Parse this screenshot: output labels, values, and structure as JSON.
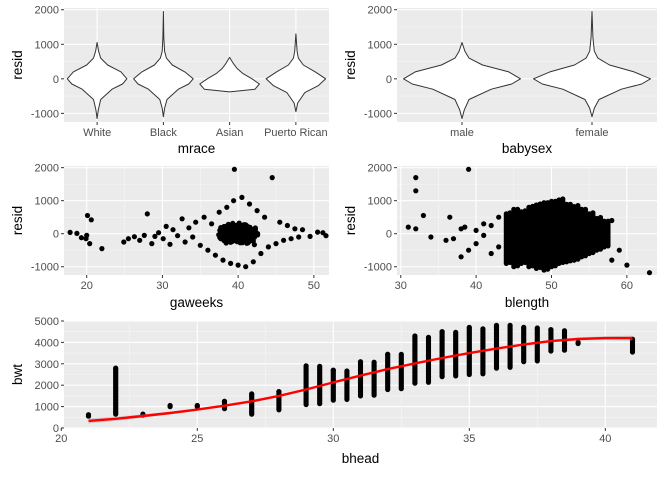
{
  "chart_data": [
    {
      "id": "mrace",
      "type": "violin",
      "xlabel": "mrace",
      "ylabel": "resid",
      "categories": [
        "White",
        "Black",
        "Asian",
        "Puerto Rican"
      ],
      "ylim": [
        -1250,
        2050
      ],
      "yticks": [
        -1000,
        0,
        1000,
        2000
      ],
      "yticklabels": [
        "-1000",
        "0",
        "1000",
        "2000"
      ],
      "grid": true,
      "violins": [
        {
          "min": -1150,
          "max": 1050,
          "profile": [
            [
              -1150,
              0.0
            ],
            [
              -900,
              0.04
            ],
            [
              -600,
              0.12
            ],
            [
              -300,
              0.5
            ],
            [
              -150,
              0.85
            ],
            [
              0,
              1.0
            ],
            [
              200,
              0.8
            ],
            [
              400,
              0.35
            ],
            [
              600,
              0.12
            ],
            [
              800,
              0.05
            ],
            [
              1050,
              0.0
            ]
          ]
        },
        {
          "min": -1100,
          "max": 1950,
          "profile": [
            [
              -1100,
              0.0
            ],
            [
              -850,
              0.04
            ],
            [
              -600,
              0.12
            ],
            [
              -300,
              0.5
            ],
            [
              -150,
              0.85
            ],
            [
              0,
              1.0
            ],
            [
              200,
              0.72
            ],
            [
              400,
              0.3
            ],
            [
              600,
              0.1
            ],
            [
              800,
              0.04
            ],
            [
              1200,
              0.015
            ],
            [
              1950,
              0.0
            ]
          ]
        },
        {
          "min": -380,
          "max": 620,
          "profile": [
            [
              -380,
              0.0
            ],
            [
              -300,
              0.85
            ],
            [
              -150,
              1.0
            ],
            [
              0,
              0.75
            ],
            [
              150,
              0.45
            ],
            [
              300,
              0.25
            ],
            [
              450,
              0.12
            ],
            [
              620,
              0.0
            ]
          ]
        },
        {
          "min": -950,
          "max": 1300,
          "profile": [
            [
              -950,
              0.0
            ],
            [
              -700,
              0.06
            ],
            [
              -400,
              0.3
            ],
            [
              -200,
              0.75
            ],
            [
              0,
              1.0
            ],
            [
              200,
              0.65
            ],
            [
              400,
              0.25
            ],
            [
              600,
              0.08
            ],
            [
              800,
              0.04
            ],
            [
              1300,
              0.0
            ]
          ]
        }
      ]
    },
    {
      "id": "babysex",
      "type": "violin",
      "xlabel": "babysex",
      "ylabel": "resid",
      "categories": [
        "male",
        "female"
      ],
      "ylim": [
        -1250,
        2050
      ],
      "yticks": [
        -1000,
        0,
        1000,
        2000
      ],
      "yticklabels": [
        "-1000",
        "0",
        "1000",
        "2000"
      ],
      "grid": true,
      "violins": [
        {
          "min": -1150,
          "max": 1050,
          "profile": [
            [
              -1150,
              0.0
            ],
            [
              -900,
              0.04
            ],
            [
              -600,
              0.12
            ],
            [
              -300,
              0.5
            ],
            [
              -150,
              0.85
            ],
            [
              0,
              1.0
            ],
            [
              200,
              0.8
            ],
            [
              400,
              0.35
            ],
            [
              600,
              0.12
            ],
            [
              800,
              0.05
            ],
            [
              1050,
              0.0
            ]
          ]
        },
        {
          "min": -1100,
          "max": 1950,
          "profile": [
            [
              -1100,
              0.0
            ],
            [
              -850,
              0.04
            ],
            [
              -600,
              0.12
            ],
            [
              -300,
              0.5
            ],
            [
              -150,
              0.85
            ],
            [
              0,
              1.0
            ],
            [
              200,
              0.72
            ],
            [
              400,
              0.3
            ],
            [
              600,
              0.1
            ],
            [
              800,
              0.04
            ],
            [
              1200,
              0.015
            ],
            [
              1950,
              0.0
            ]
          ]
        }
      ]
    },
    {
      "id": "gaweeks",
      "type": "scatter",
      "xlabel": "gaweeks",
      "ylabel": "resid",
      "xlim": [
        17,
        52
      ],
      "ylim": [
        -1250,
        2050
      ],
      "xticks": [
        20,
        30,
        40,
        50
      ],
      "xticklabels": [
        "20",
        "30",
        "40",
        "50"
      ],
      "yticks": [
        -1000,
        0,
        1000,
        2000
      ],
      "yticklabels": [
        "-1000",
        "0",
        "1000",
        "2000"
      ],
      "grid": true,
      "points": [
        [
          17.8,
          40
        ],
        [
          18.7,
          10
        ],
        [
          19.3,
          -120
        ],
        [
          19.9,
          -150
        ],
        [
          20.1,
          550
        ],
        [
          20.4,
          -300
        ],
        [
          20.0,
          -50
        ],
        [
          20.6,
          420
        ],
        [
          22.0,
          -450
        ],
        [
          24.9,
          -250
        ],
        [
          25.5,
          -150
        ],
        [
          26.3,
          -90
        ],
        [
          27.0,
          -200
        ],
        [
          27.6,
          -50
        ],
        [
          28.0,
          600
        ],
        [
          28.6,
          -300
        ],
        [
          29.0,
          -80
        ],
        [
          29.5,
          30
        ],
        [
          30.1,
          -150
        ],
        [
          30.5,
          220
        ],
        [
          31.0,
          -320
        ],
        [
          31.4,
          120
        ],
        [
          32.0,
          -60
        ],
        [
          32.6,
          450
        ],
        [
          33.0,
          -250
        ],
        [
          33.5,
          180
        ],
        [
          34.0,
          -100
        ],
        [
          34.4,
          350
        ],
        [
          35.0,
          -350
        ],
        [
          35.5,
          500
        ],
        [
          36.0,
          -500
        ],
        [
          36.5,
          300
        ],
        [
          37.0,
          -650
        ],
        [
          37.5,
          650
        ],
        [
          38.0,
          -800
        ],
        [
          38.5,
          800
        ],
        [
          39.0,
          -900
        ],
        [
          39.4,
          1000
        ],
        [
          39.5,
          1950
        ],
        [
          40.0,
          -950
        ],
        [
          40.5,
          1100
        ],
        [
          41.0,
          -1000
        ],
        [
          41.5,
          900
        ],
        [
          42.0,
          -850
        ],
        [
          42.5,
          700
        ],
        [
          43.0,
          -600
        ],
        [
          43.5,
          500
        ],
        [
          44.0,
          -400
        ],
        [
          44.5,
          1700
        ],
        [
          45.0,
          -300
        ],
        [
          45.5,
          350
        ],
        [
          46.0,
          -200
        ],
        [
          46.5,
          250
        ],
        [
          47.0,
          -150
        ],
        [
          47.5,
          150
        ],
        [
          48.0,
          -100
        ],
        [
          48.5,
          120
        ],
        [
          49.5,
          -80
        ],
        [
          50.5,
          50
        ],
        [
          51.2,
          30
        ],
        [
          51.6,
          -60
        ]
      ],
      "dense_band": {
        "x": [
          28,
          48
        ],
        "y": [
          -900,
          900
        ],
        "count": 1600
      }
    },
    {
      "id": "blength",
      "type": "scatter",
      "xlabel": "blength",
      "ylabel": "resid",
      "xlim": [
        29.5,
        64
      ],
      "ylim": [
        -1250,
        2050
      ],
      "xticks": [
        30,
        40,
        50,
        60
      ],
      "xticklabels": [
        "30",
        "40",
        "50",
        "60"
      ],
      "yticks": [
        -1000,
        0,
        1000,
        2000
      ],
      "yticklabels": [
        "-1000",
        "0",
        "1000",
        "2000"
      ],
      "grid": true,
      "points": [
        [
          31.0,
          200
        ],
        [
          32.0,
          1700
        ],
        [
          32.0,
          1300
        ],
        [
          32.0,
          150
        ],
        [
          33.0,
          550
        ],
        [
          34.0,
          -100
        ],
        [
          36.0,
          -200
        ],
        [
          36.5,
          500
        ],
        [
          37.0,
          -150
        ],
        [
          38.0,
          150
        ],
        [
          38.0,
          -700
        ],
        [
          38.5,
          200
        ],
        [
          39.0,
          1950
        ],
        [
          39.0,
          -500
        ],
        [
          40.0,
          -300
        ],
        [
          40.0,
          100
        ],
        [
          41.0,
          -50
        ],
        [
          41.0,
          300
        ],
        [
          42.0,
          -600
        ],
        [
          42.0,
          250
        ],
        [
          43.0,
          -400
        ],
        [
          43.0,
          500
        ],
        [
          58.0,
          -800
        ],
        [
          58.0,
          400
        ],
        [
          59.0,
          -500
        ],
        [
          60.0,
          -950
        ],
        [
          63.0,
          -1180
        ]
      ],
      "columns": {
        "x": [
          44,
          57
        ],
        "ymin": [
          -900,
          -1000,
          -900,
          -1000,
          -1050,
          -1100,
          -1000,
          -900,
          -850,
          -800,
          -700,
          -600,
          -500,
          -400
        ],
        "ymax": [
          650,
          750,
          700,
          850,
          900,
          950,
          1000,
          1050,
          900,
          850,
          750,
          650,
          500,
          400
        ]
      }
    },
    {
      "id": "bhead",
      "type": "scatter",
      "xlabel": "bhead",
      "ylabel": "bwt",
      "xlim": [
        20.1,
        41.9
      ],
      "ylim": [
        0,
        5000
      ],
      "xticks": [
        20,
        25,
        30,
        35,
        40
      ],
      "xticklabels": [
        "20",
        "25",
        "30",
        "35",
        "40"
      ],
      "yticks": [
        0,
        1000,
        2000,
        3000,
        4000,
        5000
      ],
      "yticklabels": [
        "0",
        "1000",
        "2000",
        "3000",
        "4000",
        "5000"
      ],
      "grid": true,
      "columns": [
        [
          21,
          550,
          620
        ],
        [
          22,
          650,
          2800
        ],
        [
          23,
          600,
          650
        ],
        [
          24,
          1000,
          1050
        ],
        [
          25,
          1000,
          1050
        ],
        [
          26,
          900,
          1250
        ],
        [
          27,
          650,
          1600
        ],
        [
          28,
          850,
          1700
        ],
        [
          29,
          1100,
          2900
        ],
        [
          30,
          1300,
          2700
        ],
        [
          31,
          1500,
          3100
        ],
        [
          32,
          1800,
          3450
        ],
        [
          33,
          2100,
          4300
        ],
        [
          34,
          2400,
          4500
        ],
        [
          35,
          2500,
          4700
        ],
        [
          36,
          2800,
          4800
        ],
        [
          37,
          3100,
          4700
        ],
        [
          38,
          3600,
          4600
        ],
        [
          39,
          3950,
          4000
        ],
        [
          41,
          3550,
          4150
        ]
      ],
      "smooth": {
        "color": "#FF0000",
        "x": [
          21,
          22,
          23,
          24,
          25,
          26,
          27,
          28,
          29,
          30,
          31,
          32,
          33,
          34,
          35,
          36,
          37,
          38,
          39,
          40,
          41
        ],
        "y": [
          330,
          430,
          560,
          700,
          860,
          1040,
          1250,
          1500,
          1800,
          2130,
          2450,
          2750,
          3020,
          3270,
          3500,
          3710,
          3900,
          4060,
          4160,
          4200,
          4200
        ],
        "band": [
          120,
          100,
          80,
          60,
          45,
          35,
          30,
          30,
          30,
          30,
          25,
          20,
          20,
          20,
          20,
          25,
          35,
          50,
          70,
          90,
          120
        ]
      }
    }
  ]
}
